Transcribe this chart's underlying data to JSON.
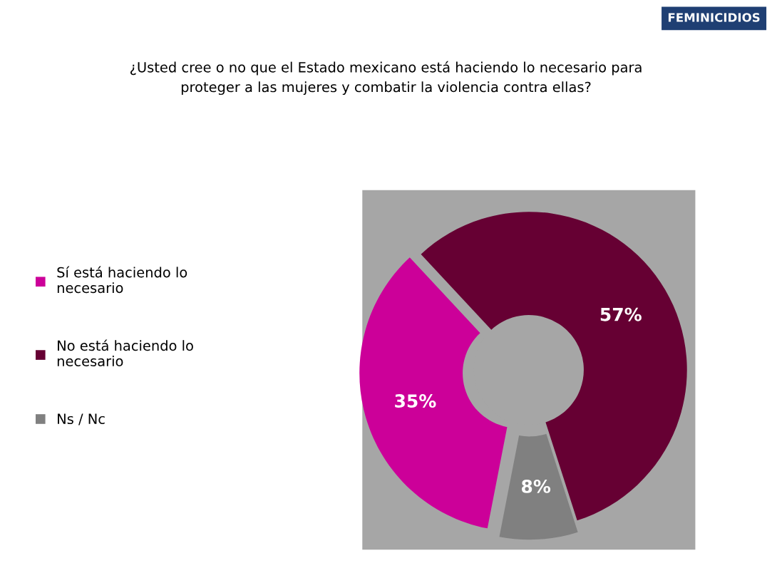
{
  "chart_data": {
    "type": "donut",
    "title": "¿Usted cree o no que el Estado mexicano está haciendo lo necesario para\nproteger a las mujeres y combatir la violencia contra ellas?",
    "annotations": [
      "FEMINICIDIOS"
    ],
    "categories": [
      "Sí está haciendo lo\nnecesario",
      "No está haciendo lo\nnecesario",
      "Ns / Nc"
    ],
    "values": [
      35,
      57,
      8
    ],
    "value_labels": [
      "35%",
      "57%",
      "8%"
    ],
    "colors": [
      "#cc0099",
      "#660033",
      "#808080"
    ],
    "legend": "left"
  }
}
